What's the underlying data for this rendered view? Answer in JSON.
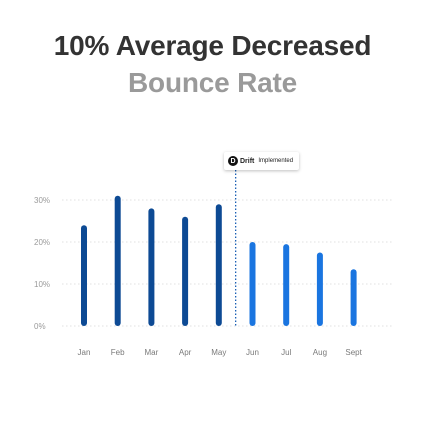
{
  "header": {
    "line1": "10% Average Decreased",
    "line2": "Bounce Rate"
  },
  "annotation": {
    "logo_glyph": "D",
    "brand": "Drift",
    "text": "Implemented",
    "at_category": "May"
  },
  "colors": {
    "before": "#0d4a94",
    "after": "#1a75e0",
    "marker_line": "#1a5fb4",
    "grid": "#d6d6d6"
  },
  "chart_data": {
    "type": "bar",
    "title": "",
    "xlabel": "",
    "ylabel": "",
    "categories": [
      "Jan",
      "Feb",
      "Mar",
      "Apr",
      "May",
      "Jun",
      "Jul",
      "Aug",
      "Sept"
    ],
    "values": [
      24,
      31,
      28,
      26,
      29,
      20,
      19.5,
      17.5,
      13.5
    ],
    "unit": "%",
    "ylim": [
      0,
      30
    ],
    "yticks": [
      0,
      10,
      20,
      30
    ],
    "ytick_labels": [
      "0%",
      "10%",
      "20%",
      "30%"
    ],
    "grid": true,
    "legend": "none"
  }
}
